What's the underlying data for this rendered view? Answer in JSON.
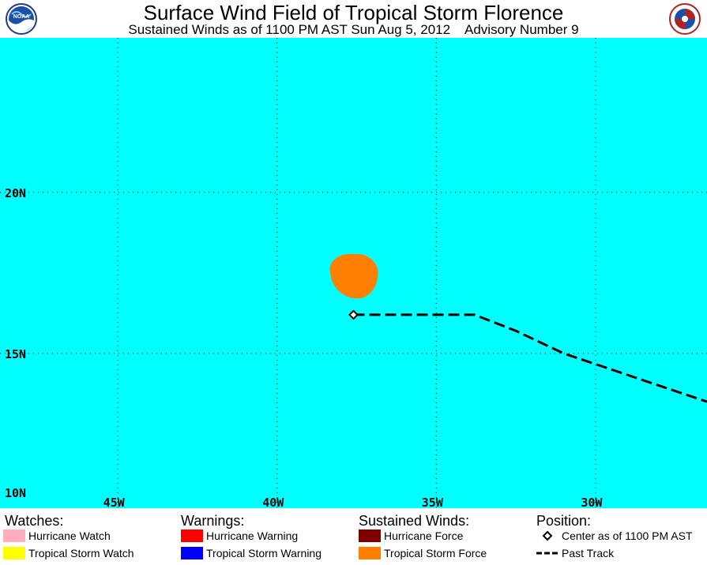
{
  "header": {
    "title": "Surface Wind Field of Tropical Storm Florence",
    "subtitle": "Sustained Winds as of 1100 PM AST Sun Aug 5, 2012    Advisory Number 9",
    "logo_left_icon": "noaa-logo-icon",
    "logo_left_text": "NOAA",
    "logo_right_icon": "national-weather-service-logo-icon"
  },
  "map": {
    "background_color": "#00ffff",
    "grid": true,
    "lat_labels": [
      "20N",
      "15N",
      "10N"
    ],
    "lon_labels": [
      "45W",
      "40W",
      "35W",
      "30W"
    ],
    "lat_range": [
      10,
      24.6
    ],
    "lon_range": [
      48.7,
      26.5
    ],
    "storm": {
      "name": "Tropical Storm Florence",
      "center": {
        "lat": 16.2,
        "lon": 37.6
      },
      "wind_field": "Tropical Storm Force",
      "wind_field_color": "#ff8000",
      "past_track": [
        {
          "lat": 16.2,
          "lon": 37.6
        },
        {
          "lat": 16.2,
          "lon": 35.0
        },
        {
          "lat": 16.2,
          "lon": 33.8
        },
        {
          "lat": 15.7,
          "lon": 32.5
        },
        {
          "lat": 15.0,
          "lon": 31.0
        },
        {
          "lat": 14.5,
          "lon": 29.5
        },
        {
          "lat": 14.0,
          "lon": 28.0
        },
        {
          "lat": 13.5,
          "lon": 26.5
        }
      ]
    }
  },
  "legend": {
    "watches": {
      "heading": "Watches:",
      "items": [
        {
          "label": "Hurricane Watch",
          "color": "#ffaec0"
        },
        {
          "label": "Tropical Storm Watch",
          "color": "#ffff00"
        }
      ]
    },
    "warnings": {
      "heading": "Warnings:",
      "items": [
        {
          "label": "Hurricane Warning",
          "color": "#ff0000"
        },
        {
          "label": "Tropical Storm Warning",
          "color": "#0000ff"
        }
      ]
    },
    "winds": {
      "heading": "Sustained Winds:",
      "items": [
        {
          "label": "Hurricane Force",
          "color": "#800000"
        },
        {
          "label": "Tropical Storm Force",
          "color": "#ff8000"
        }
      ]
    },
    "position": {
      "heading": "Position:",
      "items": [
        {
          "label": "Center as of 1100 PM AST",
          "icon": "diamond-icon"
        },
        {
          "label": "Past Track",
          "icon": "dashed-line-icon"
        }
      ]
    }
  }
}
